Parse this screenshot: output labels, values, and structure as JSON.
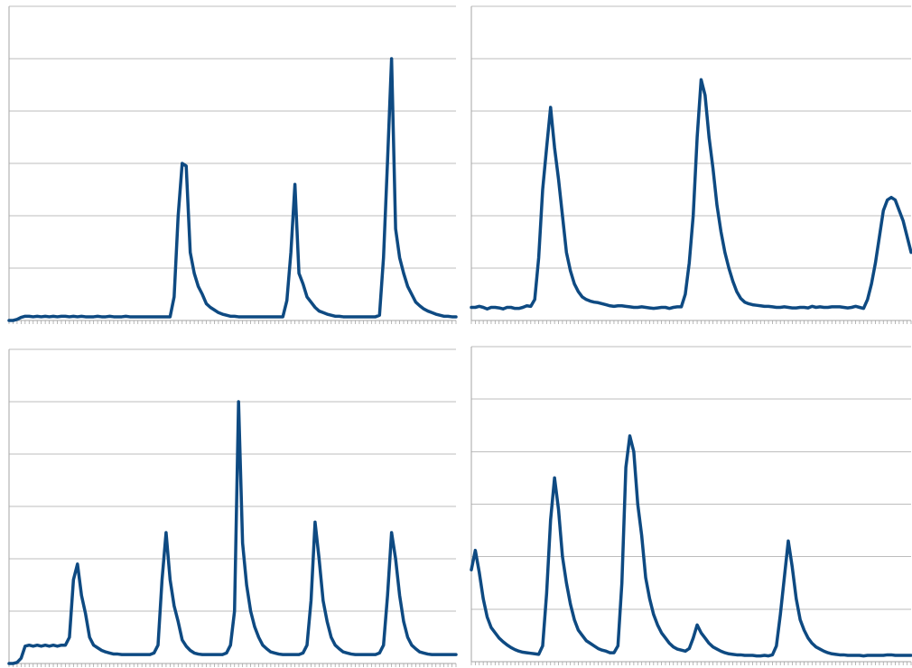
{
  "colors": {
    "line": "#0e4a82",
    "grid": "#bdbdbd",
    "axis": "#a6a6a6",
    "tick": "#a6a6a6",
    "background": "#ffffff"
  },
  "chart_data": [
    {
      "type": "line",
      "grid": true,
      "ylim": [
        0,
        6
      ],
      "x_count": 112,
      "series": [
        {
          "values": [
            0,
            0,
            0.02,
            0.06,
            0.08,
            0.08,
            0.07,
            0.08,
            0.07,
            0.08,
            0.07,
            0.08,
            0.07,
            0.08,
            0.08,
            0.07,
            0.08,
            0.07,
            0.08,
            0.07,
            0.07,
            0.07,
            0.08,
            0.07,
            0.07,
            0.08,
            0.07,
            0.07,
            0.07,
            0.08,
            0.07,
            0.07,
            0.07,
            0.07,
            0.07,
            0.07,
            0.07,
            0.07,
            0.07,
            0.07,
            0.07,
            0.45,
            2.0,
            3.0,
            2.95,
            1.3,
            0.9,
            0.65,
            0.5,
            0.32,
            0.25,
            0.2,
            0.15,
            0.12,
            0.1,
            0.08,
            0.08,
            0.07,
            0.07,
            0.07,
            0.07,
            0.07,
            0.07,
            0.07,
            0.07,
            0.07,
            0.07,
            0.07,
            0.07,
            0.38,
            1.3,
            2.6,
            0.9,
            0.7,
            0.45,
            0.35,
            0.25,
            0.18,
            0.15,
            0.12,
            0.1,
            0.08,
            0.08,
            0.07,
            0.07,
            0.07,
            0.07,
            0.07,
            0.07,
            0.07,
            0.07,
            0.07,
            0.1,
            1.2,
            3.05,
            5.0,
            1.75,
            1.2,
            0.9,
            0.65,
            0.5,
            0.35,
            0.28,
            0.22,
            0.18,
            0.15,
            0.12,
            0.1,
            0.08,
            0.08,
            0.07,
            0.07
          ]
        }
      ]
    },
    {
      "type": "line",
      "grid": true,
      "ylim": [
        0,
        6
      ],
      "x_count": 112,
      "series": [
        {
          "values": [
            0.25,
            0.25,
            0.27,
            0.25,
            0.22,
            0.25,
            0.25,
            0.24,
            0.22,
            0.25,
            0.25,
            0.23,
            0.23,
            0.25,
            0.28,
            0.27,
            0.4,
            1.2,
            2.5,
            3.3,
            4.07,
            3.3,
            2.7,
            2.0,
            1.3,
            0.95,
            0.7,
            0.55,
            0.45,
            0.4,
            0.37,
            0.35,
            0.34,
            0.32,
            0.3,
            0.28,
            0.27,
            0.28,
            0.28,
            0.27,
            0.26,
            0.25,
            0.25,
            0.26,
            0.25,
            0.24,
            0.23,
            0.24,
            0.25,
            0.25,
            0.23,
            0.25,
            0.26,
            0.26,
            0.5,
            1.1,
            2.0,
            3.5,
            4.6,
            4.3,
            3.5,
            2.9,
            2.2,
            1.7,
            1.3,
            1.0,
            0.75,
            0.55,
            0.42,
            0.35,
            0.32,
            0.3,
            0.29,
            0.28,
            0.27,
            0.27,
            0.26,
            0.25,
            0.25,
            0.26,
            0.25,
            0.24,
            0.24,
            0.25,
            0.25,
            0.24,
            0.27,
            0.25,
            0.26,
            0.25,
            0.25,
            0.26,
            0.26,
            0.26,
            0.25,
            0.24,
            0.25,
            0.27,
            0.25,
            0.23,
            0.4,
            0.7,
            1.1,
            1.6,
            2.1,
            2.3,
            2.35,
            2.3,
            2.1,
            1.9,
            1.6,
            1.3
          ]
        }
      ]
    },
    {
      "type": "line",
      "grid": true,
      "ylim": [
        0,
        6
      ],
      "x_count": 112,
      "series": [
        {
          "values": [
            0,
            0,
            0.02,
            0.1,
            0.33,
            0.35,
            0.33,
            0.35,
            0.33,
            0.35,
            0.33,
            0.35,
            0.33,
            0.35,
            0.35,
            0.5,
            1.6,
            1.9,
            1.3,
            0.95,
            0.5,
            0.35,
            0.3,
            0.25,
            0.22,
            0.2,
            0.18,
            0.18,
            0.17,
            0.17,
            0.17,
            0.17,
            0.17,
            0.17,
            0.17,
            0.17,
            0.2,
            0.35,
            1.6,
            2.5,
            1.6,
            1.1,
            0.8,
            0.45,
            0.33,
            0.25,
            0.2,
            0.18,
            0.17,
            0.17,
            0.17,
            0.17,
            0.17,
            0.17,
            0.2,
            0.35,
            1.0,
            5.0,
            2.3,
            1.5,
            1.0,
            0.7,
            0.5,
            0.35,
            0.28,
            0.22,
            0.2,
            0.18,
            0.17,
            0.17,
            0.17,
            0.17,
            0.17,
            0.2,
            0.35,
            1.2,
            2.7,
            2.0,
            1.2,
            0.8,
            0.5,
            0.35,
            0.28,
            0.22,
            0.2,
            0.18,
            0.17,
            0.17,
            0.17,
            0.17,
            0.17,
            0.17,
            0.2,
            0.35,
            1.3,
            2.5,
            2.0,
            1.3,
            0.8,
            0.5,
            0.35,
            0.28,
            0.22,
            0.2,
            0.18,
            0.17,
            0.17,
            0.17,
            0.17,
            0.17,
            0.17,
            0.17
          ]
        }
      ]
    },
    {
      "type": "line",
      "grid": true,
      "ylim": [
        0,
        6
      ],
      "x_count": 112,
      "series": [
        {
          "values": [
            1.75,
            2.12,
            1.7,
            1.2,
            0.85,
            0.65,
            0.55,
            0.45,
            0.38,
            0.32,
            0.27,
            0.23,
            0.2,
            0.18,
            0.17,
            0.16,
            0.15,
            0.14,
            0.3,
            1.3,
            2.7,
            3.5,
            2.9,
            2.0,
            1.5,
            1.1,
            0.8,
            0.6,
            0.5,
            0.4,
            0.35,
            0.3,
            0.25,
            0.22,
            0.2,
            0.17,
            0.17,
            0.3,
            1.5,
            3.7,
            4.3,
            4.0,
            3.0,
            2.4,
            1.6,
            1.2,
            0.9,
            0.7,
            0.55,
            0.45,
            0.35,
            0.28,
            0.24,
            0.22,
            0.2,
            0.25,
            0.45,
            0.7,
            0.55,
            0.45,
            0.35,
            0.28,
            0.24,
            0.2,
            0.17,
            0.15,
            0.14,
            0.13,
            0.13,
            0.12,
            0.12,
            0.12,
            0.11,
            0.11,
            0.12,
            0.11,
            0.13,
            0.3,
            0.9,
            1.6,
            2.3,
            1.8,
            1.2,
            0.8,
            0.6,
            0.45,
            0.35,
            0.28,
            0.24,
            0.2,
            0.17,
            0.15,
            0.14,
            0.13,
            0.13,
            0.12,
            0.12,
            0.12,
            0.12,
            0.11,
            0.12,
            0.12,
            0.12,
            0.12,
            0.12,
            0.13,
            0.13,
            0.12,
            0.12,
            0.12,
            0.12,
            0.12
          ]
        }
      ]
    }
  ]
}
